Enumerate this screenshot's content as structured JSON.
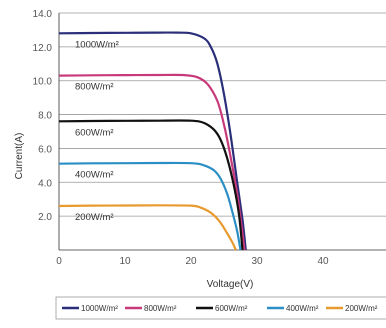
{
  "chart_data": {
    "type": "line",
    "xlabel": "Voltage(V)",
    "ylabel": "Current(A)",
    "xlim": [
      0,
      50
    ],
    "ylim": [
      0,
      14
    ],
    "x_ticks": [
      0,
      10,
      20,
      30,
      40
    ],
    "y_ticks": [
      2,
      4,
      6,
      8,
      10,
      12,
      14
    ],
    "x_tick_labels": [
      "0",
      "10",
      "20",
      "30",
      "40"
    ],
    "y_tick_labels": [
      "2.0",
      "4.0",
      "6.0",
      "8.0",
      "10.0",
      "12.0",
      "14.0"
    ],
    "grid": "horizontal",
    "legend_position": "bottom",
    "series": [
      {
        "name": "1000W/m²",
        "label": "1000W/m²",
        "color": "#2b2f7a",
        "points": [
          [
            0,
            12.8
          ],
          [
            5,
            12.82
          ],
          [
            10,
            12.83
          ],
          [
            15,
            12.84
          ],
          [
            18,
            12.84
          ],
          [
            20,
            12.8
          ],
          [
            22,
            12.5
          ],
          [
            23,
            12.0
          ],
          [
            24,
            11.0
          ],
          [
            25,
            9.2
          ],
          [
            26,
            6.8
          ],
          [
            27,
            4.0
          ],
          [
            27.8,
            1.8
          ],
          [
            28.3,
            0
          ]
        ]
      },
      {
        "name": "800W/m²",
        "label": "800W/m²",
        "color": "#c8397a",
        "points": [
          [
            0,
            10.3
          ],
          [
            5,
            10.32
          ],
          [
            10,
            10.33
          ],
          [
            15,
            10.34
          ],
          [
            19,
            10.33
          ],
          [
            21,
            10.2
          ],
          [
            22.5,
            9.8
          ],
          [
            24,
            8.8
          ],
          [
            25,
            7.4
          ],
          [
            26,
            5.5
          ],
          [
            27,
            3.3
          ],
          [
            27.6,
            1.6
          ],
          [
            28.1,
            0
          ]
        ]
      },
      {
        "name": "600W/m²",
        "label": "600W/m²",
        "color": "#111111",
        "points": [
          [
            0,
            7.6
          ],
          [
            5,
            7.62
          ],
          [
            10,
            7.63
          ],
          [
            15,
            7.64
          ],
          [
            20,
            7.64
          ],
          [
            22,
            7.5
          ],
          [
            23.5,
            7.1
          ],
          [
            24.5,
            6.5
          ],
          [
            25.5,
            5.4
          ],
          [
            26.5,
            3.8
          ],
          [
            27.3,
            2.0
          ],
          [
            27.8,
            0
          ]
        ]
      },
      {
        "name": "400W/m²",
        "label": "400W/m²",
        "color": "#2b8fc6",
        "points": [
          [
            0,
            5.1
          ],
          [
            5,
            5.12
          ],
          [
            10,
            5.13
          ],
          [
            15,
            5.14
          ],
          [
            20,
            5.13
          ],
          [
            22,
            5.0
          ],
          [
            23.5,
            4.7
          ],
          [
            24.5,
            4.2
          ],
          [
            25.5,
            3.3
          ],
          [
            26.3,
            2.2
          ],
          [
            27,
            1.1
          ],
          [
            27.5,
            0
          ]
        ]
      },
      {
        "name": "200W/m²",
        "label": "200W/m²",
        "color": "#e89a2e",
        "points": [
          [
            0,
            2.6
          ],
          [
            5,
            2.62
          ],
          [
            10,
            2.63
          ],
          [
            15,
            2.64
          ],
          [
            20,
            2.62
          ],
          [
            21.5,
            2.5
          ],
          [
            23,
            2.2
          ],
          [
            24.3,
            1.7
          ],
          [
            25.3,
            1.1
          ],
          [
            26.2,
            0.5
          ],
          [
            26.8,
            0
          ]
        ]
      }
    ]
  }
}
